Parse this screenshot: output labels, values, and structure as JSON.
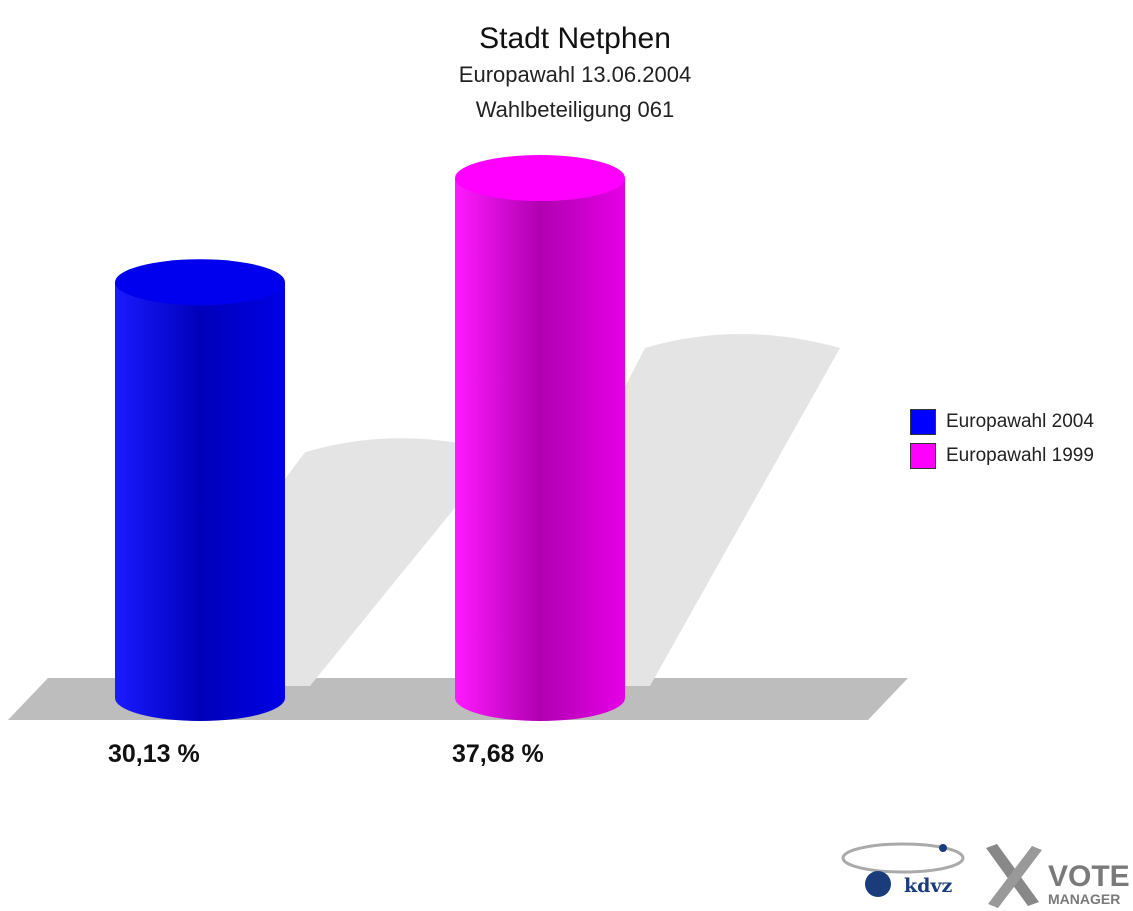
{
  "title": "Stadt Netphen",
  "subtitle1": "Europawahl 13.06.2004",
  "subtitle2": "Wahlbeteiligung 061",
  "chart_data": {
    "type": "bar",
    "title": "Stadt Netphen",
    "subtitle": "Europawahl 13.06.2004 / Wahlbeteiligung 061",
    "series": [
      {
        "name": "Europawahl 2004",
        "value": 30.13,
        "label": "30,13 %",
        "color": "#0000ff"
      },
      {
        "name": "Europawahl 1999",
        "value": 37.68,
        "label": "37,68 %",
        "color": "#ff00ff"
      }
    ],
    "unit": "%",
    "legend_position": "right",
    "grid": false
  },
  "logo": {
    "kdvz_text": "kdvz",
    "vote_text": "VOTE",
    "manager_text": "MANAGER"
  }
}
